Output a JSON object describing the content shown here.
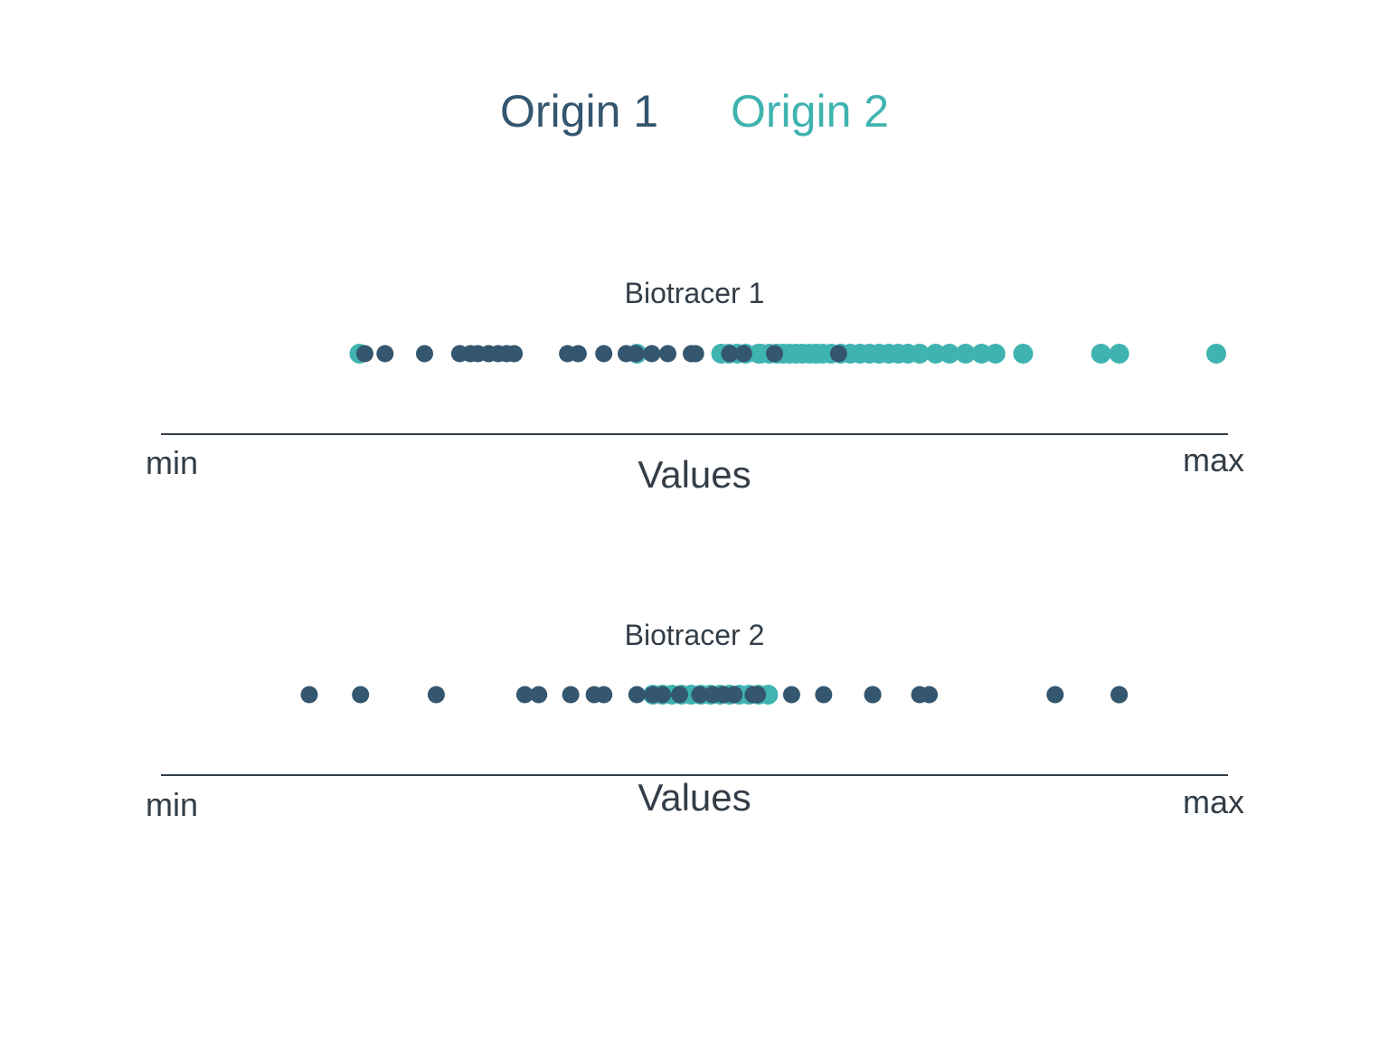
{
  "legend": [
    {
      "label": "Origin 1",
      "color": "#34566f"
    },
    {
      "label": "Origin 2",
      "color": "#3fb3b0"
    }
  ],
  "chart_data": [
    {
      "type": "scatter",
      "title": "Biotracer 1",
      "xlabel": "Values",
      "min_label": "min",
      "max_label": "max",
      "xlim": [
        0,
        1
      ],
      "series": [
        {
          "name": "Origin 2",
          "color": "#3fb3b0",
          "x": [
            0.186,
            0.446,
            0.525,
            0.532,
            0.54,
            0.548,
            0.56,
            0.562,
            0.57,
            0.577,
            0.583,
            0.589,
            0.595,
            0.601,
            0.608,
            0.614,
            0.62,
            0.628,
            0.637,
            0.646,
            0.655,
            0.664,
            0.673,
            0.682,
            0.691,
            0.7,
            0.711,
            0.726,
            0.739,
            0.754,
            0.769,
            0.782,
            0.808,
            0.881,
            0.898,
            0.989
          ]
        },
        {
          "name": "Origin 1",
          "color": "#34566f",
          "x": [
            0.191,
            0.21,
            0.247,
            0.28,
            0.29,
            0.297,
            0.307,
            0.316,
            0.324,
            0.331,
            0.381,
            0.391,
            0.415,
            0.436,
            0.445,
            0.46,
            0.475,
            0.497,
            0.501,
            0.533,
            0.546,
            0.575,
            0.635
          ]
        }
      ]
    },
    {
      "type": "scatter",
      "title": "Biotracer 2",
      "xlabel": "Values",
      "min_label": "min",
      "max_label": "max",
      "xlim": [
        0,
        1
      ],
      "series": [
        {
          "name": "Origin 2",
          "color": "#3fb3b0",
          "x": [
            0.461,
            0.47,
            0.479,
            0.488,
            0.497,
            0.506,
            0.515,
            0.524,
            0.533,
            0.542,
            0.551,
            0.56,
            0.569
          ]
        },
        {
          "name": "Origin 1",
          "color": "#34566f",
          "x": [
            0.139,
            0.187,
            0.258,
            0.341,
            0.354,
            0.384,
            0.406,
            0.415,
            0.446,
            0.461,
            0.47,
            0.486,
            0.505,
            0.517,
            0.527,
            0.537,
            0.555,
            0.559,
            0.591,
            0.621,
            0.667,
            0.667,
            0.711,
            0.72,
            0.838,
            0.898,
            0.898
          ]
        }
      ]
    }
  ]
}
